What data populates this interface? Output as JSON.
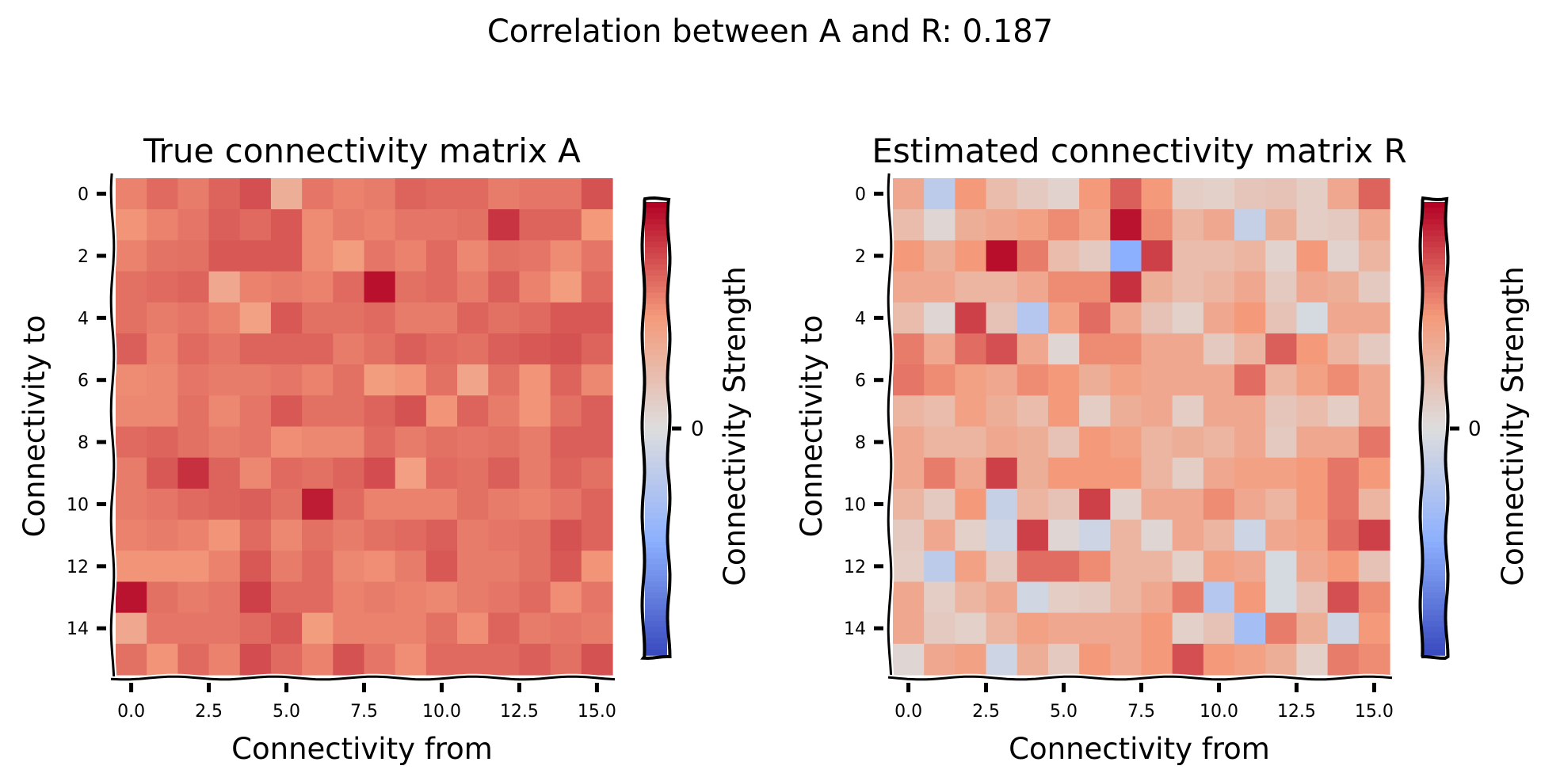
{
  "figure": {
    "suptitle": "Correlation between A and R: 0.187"
  },
  "chart_data": [
    {
      "type": "heatmap",
      "title": "True connectivity matrix A",
      "xlabel": "Connectivity from",
      "ylabel": "Connectivity to",
      "colorbar_label": "Connectivity Strength",
      "colorbar_ticks": [
        "0"
      ],
      "colormap": "coolwarm",
      "vrange": [
        -1,
        1
      ],
      "x_ticks": [
        "0.0",
        "2.5",
        "5.0",
        "7.5",
        "10.0",
        "12.5",
        "15.0"
      ],
      "y_ticks": [
        "0",
        "2",
        "4",
        "6",
        "8",
        "10",
        "12",
        "14"
      ],
      "matrix": [
        [
          0.58,
          0.66,
          0.6,
          0.68,
          0.75,
          0.35,
          0.62,
          0.58,
          0.6,
          0.68,
          0.66,
          0.66,
          0.6,
          0.62,
          0.62,
          0.74
        ],
        [
          0.52,
          0.58,
          0.62,
          0.7,
          0.66,
          0.72,
          0.55,
          0.6,
          0.58,
          0.62,
          0.62,
          0.64,
          0.84,
          0.68,
          0.68,
          0.5
        ],
        [
          0.58,
          0.63,
          0.64,
          0.72,
          0.72,
          0.72,
          0.55,
          0.48,
          0.62,
          0.58,
          0.66,
          0.56,
          0.64,
          0.62,
          0.55,
          0.62
        ],
        [
          0.64,
          0.66,
          0.68,
          0.4,
          0.58,
          0.6,
          0.58,
          0.66,
          0.96,
          0.64,
          0.66,
          0.6,
          0.7,
          0.58,
          0.48,
          0.66
        ],
        [
          0.64,
          0.6,
          0.62,
          0.58,
          0.45,
          0.72,
          0.64,
          0.64,
          0.66,
          0.6,
          0.6,
          0.68,
          0.64,
          0.66,
          0.72,
          0.72
        ],
        [
          0.7,
          0.58,
          0.66,
          0.62,
          0.68,
          0.68,
          0.68,
          0.6,
          0.64,
          0.7,
          0.66,
          0.64,
          0.7,
          0.72,
          0.74,
          0.68
        ],
        [
          0.55,
          0.56,
          0.62,
          0.6,
          0.6,
          0.62,
          0.58,
          0.64,
          0.48,
          0.52,
          0.64,
          0.42,
          0.64,
          0.52,
          0.68,
          0.56
        ],
        [
          0.56,
          0.56,
          0.64,
          0.56,
          0.62,
          0.72,
          0.64,
          0.64,
          0.68,
          0.74,
          0.52,
          0.68,
          0.6,
          0.52,
          0.64,
          0.7
        ],
        [
          0.66,
          0.68,
          0.64,
          0.6,
          0.62,
          0.54,
          0.56,
          0.56,
          0.66,
          0.6,
          0.64,
          0.62,
          0.64,
          0.6,
          0.7,
          0.7
        ],
        [
          0.6,
          0.72,
          0.85,
          0.68,
          0.56,
          0.66,
          0.64,
          0.68,
          0.76,
          0.46,
          0.66,
          0.64,
          0.7,
          0.6,
          0.68,
          0.64
        ],
        [
          0.6,
          0.62,
          0.66,
          0.68,
          0.7,
          0.64,
          0.92,
          0.66,
          0.58,
          0.58,
          0.58,
          0.64,
          0.6,
          0.58,
          0.62,
          0.68
        ],
        [
          0.58,
          0.6,
          0.58,
          0.52,
          0.66,
          0.56,
          0.64,
          0.6,
          0.64,
          0.66,
          0.7,
          0.6,
          0.62,
          0.64,
          0.74,
          0.68
        ],
        [
          0.52,
          0.52,
          0.52,
          0.58,
          0.72,
          0.6,
          0.66,
          0.56,
          0.54,
          0.6,
          0.72,
          0.6,
          0.6,
          0.64,
          0.72,
          0.52
        ],
        [
          0.95,
          0.64,
          0.6,
          0.62,
          0.8,
          0.66,
          0.66,
          0.58,
          0.6,
          0.58,
          0.56,
          0.6,
          0.62,
          0.66,
          0.54,
          0.62
        ],
        [
          0.4,
          0.62,
          0.62,
          0.62,
          0.66,
          0.72,
          0.48,
          0.58,
          0.58,
          0.58,
          0.64,
          0.54,
          0.68,
          0.6,
          0.62,
          0.6
        ],
        [
          0.64,
          0.52,
          0.66,
          0.58,
          0.76,
          0.66,
          0.58,
          0.74,
          0.62,
          0.54,
          0.66,
          0.66,
          0.66,
          0.7,
          0.64,
          0.74
        ]
      ]
    },
    {
      "type": "heatmap",
      "title": "Estimated connectivity matrix R",
      "xlabel": "Connectivity from",
      "ylabel": "Connectivity to",
      "colorbar_label": "Connectivity Strength",
      "colorbar_ticks": [
        "0"
      ],
      "colormap": "coolwarm",
      "vrange": [
        -1,
        1
      ],
      "x_ticks": [
        "0.0",
        "2.5",
        "5.0",
        "7.5",
        "10.0",
        "12.5",
        "15.0"
      ],
      "y_ticks": [
        "0",
        "2",
        "4",
        "6",
        "8",
        "10",
        "12",
        "14"
      ],
      "matrix": [
        [
          0.4,
          -0.2,
          0.5,
          0.25,
          0.15,
          0.08,
          0.5,
          0.7,
          0.5,
          0.12,
          0.1,
          0.18,
          0.2,
          0.12,
          0.4,
          0.68
        ],
        [
          0.25,
          0.05,
          0.35,
          0.4,
          0.45,
          0.55,
          0.45,
          0.95,
          0.55,
          0.3,
          0.4,
          -0.15,
          0.35,
          0.12,
          0.15,
          0.4
        ],
        [
          0.5,
          0.35,
          0.5,
          0.97,
          0.6,
          0.25,
          0.15,
          -0.5,
          0.8,
          0.25,
          0.25,
          0.3,
          0.08,
          0.5,
          0.08,
          0.3
        ],
        [
          0.4,
          0.4,
          0.3,
          0.3,
          0.4,
          0.55,
          0.55,
          0.85,
          0.35,
          0.25,
          0.3,
          0.4,
          0.15,
          0.4,
          0.35,
          0.15
        ],
        [
          0.25,
          0.05,
          0.8,
          0.2,
          -0.25,
          0.45,
          0.65,
          0.4,
          0.2,
          0.1,
          0.4,
          0.5,
          0.2,
          -0.05,
          0.4,
          0.4
        ],
        [
          0.6,
          0.4,
          0.65,
          0.75,
          0.4,
          0.05,
          0.55,
          0.55,
          0.4,
          0.4,
          0.15,
          0.3,
          0.7,
          0.5,
          0.3,
          0.15
        ],
        [
          0.62,
          0.55,
          0.45,
          0.4,
          0.55,
          0.5,
          0.35,
          0.45,
          0.4,
          0.4,
          0.4,
          0.65,
          0.3,
          0.45,
          0.55,
          0.4
        ],
        [
          0.3,
          0.25,
          0.45,
          0.35,
          0.25,
          0.5,
          0.12,
          0.35,
          0.4,
          0.12,
          0.4,
          0.4,
          0.18,
          0.25,
          0.12,
          0.4
        ],
        [
          0.4,
          0.3,
          0.3,
          0.4,
          0.35,
          0.2,
          0.5,
          0.45,
          0.3,
          0.35,
          0.3,
          0.4,
          0.15,
          0.4,
          0.4,
          0.62
        ],
        [
          0.4,
          0.6,
          0.4,
          0.8,
          0.35,
          0.5,
          0.5,
          0.5,
          0.3,
          0.12,
          0.4,
          0.45,
          0.45,
          0.5,
          0.62,
          0.5
        ],
        [
          0.3,
          0.15,
          0.5,
          -0.15,
          0.3,
          0.2,
          0.8,
          0.08,
          0.4,
          0.4,
          0.55,
          0.4,
          0.3,
          0.5,
          0.62,
          0.3
        ],
        [
          0.15,
          0.4,
          0.1,
          -0.1,
          0.8,
          0.05,
          -0.1,
          0.3,
          0.05,
          0.4,
          0.3,
          -0.1,
          0.4,
          0.45,
          0.65,
          0.8
        ],
        [
          0.12,
          -0.2,
          0.45,
          0.15,
          0.65,
          0.65,
          0.55,
          0.3,
          0.3,
          0.1,
          0.45,
          0.4,
          -0.05,
          0.4,
          0.5,
          0.2
        ],
        [
          0.4,
          0.12,
          0.3,
          0.4,
          -0.08,
          0.12,
          0.15,
          0.3,
          0.4,
          0.6,
          -0.25,
          0.5,
          -0.05,
          0.2,
          0.75,
          0.55
        ],
        [
          0.4,
          0.15,
          0.1,
          0.3,
          0.45,
          0.4,
          0.4,
          0.4,
          0.5,
          0.1,
          0.2,
          -0.35,
          0.6,
          0.35,
          -0.1,
          0.5
        ],
        [
          0.05,
          0.4,
          0.45,
          -0.1,
          0.35,
          0.15,
          0.5,
          0.4,
          0.5,
          0.75,
          0.5,
          0.45,
          0.35,
          0.1,
          0.6,
          0.55
        ]
      ]
    }
  ]
}
